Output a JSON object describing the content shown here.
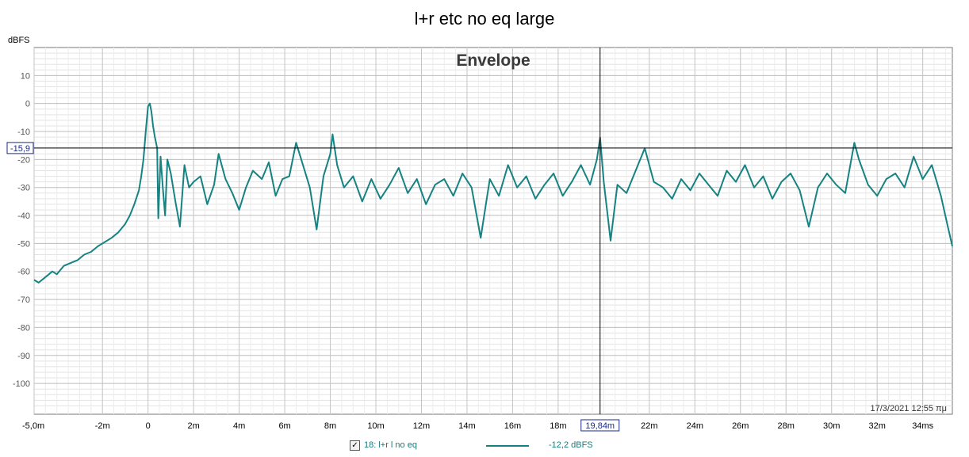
{
  "chart_data": {
    "type": "line",
    "title": "l+r etc no eq large",
    "subtitle": "Envelope",
    "ylabel": "dBFS",
    "xunit": "ms",
    "xlim": [
      -5.0,
      35.3
    ],
    "ylim": [
      -111,
      20
    ],
    "x_ticks": [
      -5,
      -2,
      0,
      2,
      4,
      6,
      8,
      10,
      12,
      14,
      16,
      18,
      22,
      24,
      26,
      28,
      30,
      32,
      34
    ],
    "x_tick_labels": [
      "-5,0m",
      "-2m",
      "0",
      "2m",
      "4m",
      "6m",
      "8m",
      "10m",
      "12m",
      "14m",
      "16m",
      "18m",
      "22m",
      "24m",
      "26m",
      "28m",
      "30m",
      "32m",
      "34ms"
    ],
    "y_ticks": [
      10,
      0,
      -10,
      -20,
      -30,
      -40,
      -50,
      -60,
      -70,
      -80,
      -90,
      -100
    ],
    "y_tick_labels": [
      "10",
      "0",
      "-10",
      "-20",
      "-30",
      "-40",
      "-50",
      "-60",
      "-70",
      "-80",
      "-90",
      "-100"
    ],
    "grid": true,
    "cursor": {
      "x": 19.84,
      "y": -15.9,
      "x_label": "19,84m",
      "y_label": "-15,9"
    },
    "timestamp": "17/3/2021 12:55 πμ",
    "series": [
      {
        "name": "18: l+r l no eq",
        "color": "#168282",
        "cursor_value": "-12,2 dBFS",
        "points": [
          [
            -5.0,
            -63
          ],
          [
            -4.8,
            -64
          ],
          [
            -4.5,
            -62
          ],
          [
            -4.2,
            -60
          ],
          [
            -4.0,
            -61
          ],
          [
            -3.7,
            -58
          ],
          [
            -3.4,
            -57
          ],
          [
            -3.1,
            -56
          ],
          [
            -2.8,
            -54
          ],
          [
            -2.5,
            -53
          ],
          [
            -2.2,
            -51
          ],
          [
            -1.9,
            -49.5
          ],
          [
            -1.6,
            -48
          ],
          [
            -1.3,
            -46
          ],
          [
            -1.0,
            -43
          ],
          [
            -0.8,
            -40
          ],
          [
            -0.6,
            -36
          ],
          [
            -0.4,
            -31
          ],
          [
            -0.3,
            -26
          ],
          [
            -0.2,
            -20
          ],
          [
            -0.1,
            -10
          ],
          [
            0.0,
            -1
          ],
          [
            0.08,
            0
          ],
          [
            0.15,
            -3
          ],
          [
            0.22,
            -8
          ],
          [
            0.3,
            -12
          ],
          [
            0.4,
            -16
          ],
          [
            0.45,
            -41
          ],
          [
            0.55,
            -19
          ],
          [
            0.65,
            -30
          ],
          [
            0.75,
            -40
          ],
          [
            0.85,
            -20
          ],
          [
            1.0,
            -25
          ],
          [
            1.2,
            -35
          ],
          [
            1.4,
            -44
          ],
          [
            1.6,
            -22
          ],
          [
            1.8,
            -30
          ],
          [
            2.0,
            -28
          ],
          [
            2.3,
            -26
          ],
          [
            2.6,
            -36
          ],
          [
            2.9,
            -29
          ],
          [
            3.1,
            -18
          ],
          [
            3.4,
            -27
          ],
          [
            3.7,
            -32
          ],
          [
            4.0,
            -38
          ],
          [
            4.3,
            -30
          ],
          [
            4.6,
            -24
          ],
          [
            5.0,
            -27
          ],
          [
            5.3,
            -21
          ],
          [
            5.6,
            -33
          ],
          [
            5.9,
            -27
          ],
          [
            6.2,
            -26
          ],
          [
            6.5,
            -14
          ],
          [
            6.8,
            -22
          ],
          [
            7.1,
            -30
          ],
          [
            7.4,
            -45
          ],
          [
            7.7,
            -26
          ],
          [
            8.0,
            -18
          ],
          [
            8.1,
            -11
          ],
          [
            8.3,
            -22
          ],
          [
            8.6,
            -30
          ],
          [
            9.0,
            -26
          ],
          [
            9.4,
            -35
          ],
          [
            9.8,
            -27
          ],
          [
            10.2,
            -34
          ],
          [
            10.6,
            -29
          ],
          [
            11.0,
            -23
          ],
          [
            11.4,
            -32
          ],
          [
            11.8,
            -27
          ],
          [
            12.2,
            -36
          ],
          [
            12.6,
            -29
          ],
          [
            13.0,
            -27
          ],
          [
            13.4,
            -33
          ],
          [
            13.8,
            -25
          ],
          [
            14.2,
            -30
          ],
          [
            14.6,
            -48
          ],
          [
            15.0,
            -27
          ],
          [
            15.4,
            -33
          ],
          [
            15.8,
            -22
          ],
          [
            16.2,
            -30
          ],
          [
            16.6,
            -26
          ],
          [
            17.0,
            -34
          ],
          [
            17.4,
            -29
          ],
          [
            17.8,
            -25
          ],
          [
            18.2,
            -33
          ],
          [
            18.6,
            -28
          ],
          [
            19.0,
            -22
          ],
          [
            19.4,
            -29
          ],
          [
            19.7,
            -20
          ],
          [
            19.84,
            -12.2
          ],
          [
            20.0,
            -28
          ],
          [
            20.3,
            -49
          ],
          [
            20.6,
            -29
          ],
          [
            21.0,
            -32
          ],
          [
            21.4,
            -24
          ],
          [
            21.8,
            -16
          ],
          [
            22.2,
            -28
          ],
          [
            22.6,
            -30
          ],
          [
            23.0,
            -34
          ],
          [
            23.4,
            -27
          ],
          [
            23.8,
            -31
          ],
          [
            24.2,
            -25
          ],
          [
            24.6,
            -29
          ],
          [
            25.0,
            -33
          ],
          [
            25.4,
            -24
          ],
          [
            25.8,
            -28
          ],
          [
            26.2,
            -22
          ],
          [
            26.6,
            -30
          ],
          [
            27.0,
            -26
          ],
          [
            27.4,
            -34
          ],
          [
            27.8,
            -28
          ],
          [
            28.2,
            -25
          ],
          [
            28.6,
            -31
          ],
          [
            29.0,
            -44
          ],
          [
            29.4,
            -30
          ],
          [
            29.8,
            -25
          ],
          [
            30.2,
            -29
          ],
          [
            30.6,
            -32
          ],
          [
            31.0,
            -14
          ],
          [
            31.2,
            -20
          ],
          [
            31.6,
            -29
          ],
          [
            32.0,
            -33
          ],
          [
            32.4,
            -27
          ],
          [
            32.8,
            -25
          ],
          [
            33.2,
            -30
          ],
          [
            33.6,
            -19
          ],
          [
            34.0,
            -27
          ],
          [
            34.4,
            -22
          ],
          [
            34.8,
            -33
          ],
          [
            35.1,
            -44
          ],
          [
            35.3,
            -51
          ]
        ]
      }
    ]
  }
}
